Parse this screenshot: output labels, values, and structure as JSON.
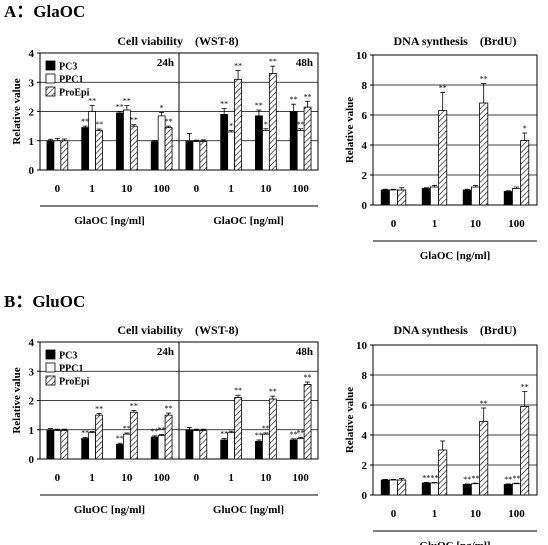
{
  "colors": {
    "PC3": "#000000",
    "PPC1": "#ffffff",
    "ProEpi": "hatch",
    "axis": "#000000",
    "grid": "#000000"
  },
  "panels": [
    {
      "label": "A：GlaOC",
      "viability_title": "Cell viability　(WST-8)",
      "synthesis_title": "DNA synthesis　(BrdU)",
      "ylabel": "Relative value",
      "xlabel": "GlaOC [ng/ml]",
      "legend": [
        "PC3",
        "PPC1",
        "ProEpi"
      ]
    },
    {
      "label": "B：GluOC",
      "viability_title": "Cell viability　(WST-8)",
      "synthesis_title": "DNA synthesis　(BrdU)",
      "ylabel": "Relative value",
      "xlabel": "GluOC [ng/ml]",
      "legend": [
        "PC3",
        "PPC1",
        "ProEpi"
      ]
    }
  ],
  "chart_data": [
    {
      "type": "bar",
      "panel": "A",
      "title": "Cell viability (WST-8)",
      "subtitle": "24h",
      "ylabel": "Relative value",
      "xlabel": "GlaOC [ng/ml]",
      "categories": [
        "0",
        "1",
        "10",
        "100"
      ],
      "ylim": [
        0,
        4
      ],
      "yticks": [
        0,
        1,
        2,
        3,
        4
      ],
      "legend_position": "top-left",
      "series": [
        {
          "name": "PC3",
          "values": [
            1.0,
            1.45,
            1.95,
            0.97
          ],
          "errors": [
            0.05,
            0.05,
            0.05,
            0.04
          ],
          "marks": [
            "",
            "**",
            "**",
            ""
          ]
        },
        {
          "name": "PPC1",
          "values": [
            1.0,
            2.0,
            2.05,
            1.85
          ],
          "errors": [
            0.08,
            0.2,
            0.15,
            0.12
          ],
          "marks": [
            "",
            "**",
            "**",
            "*"
          ]
        },
        {
          "name": "ProEpi",
          "values": [
            1.0,
            1.35,
            1.5,
            1.45
          ],
          "errors": [
            0.06,
            0.05,
            0.05,
            0.05
          ],
          "marks": [
            "",
            "**",
            "**",
            "**"
          ]
        }
      ]
    },
    {
      "type": "bar",
      "panel": "A",
      "title": "Cell viability (WST-8)",
      "subtitle": "48h",
      "ylabel": "Relative value",
      "xlabel": "GlaOC [ng/ml]",
      "categories": [
        "0",
        "1",
        "10",
        "100"
      ],
      "ylim": [
        0,
        4
      ],
      "yticks": [
        0,
        1,
        2,
        3,
        4
      ],
      "series": [
        {
          "name": "PC3",
          "values": [
            1.0,
            1.9,
            1.85,
            2.0
          ],
          "errors": [
            0.25,
            0.2,
            0.2,
            0.25
          ],
          "marks": [
            "",
            "**",
            "**",
            "**"
          ]
        },
        {
          "name": "PPC1",
          "values": [
            0.97,
            1.3,
            1.35,
            1.35
          ],
          "errors": [
            0.05,
            0.05,
            0.06,
            0.06
          ],
          "marks": [
            "",
            "*",
            "*",
            "**"
          ]
        },
        {
          "name": "ProEpi",
          "values": [
            0.97,
            3.1,
            3.3,
            2.15
          ],
          "errors": [
            0.06,
            0.3,
            0.25,
            0.2
          ],
          "marks": [
            "",
            "**",
            "**",
            "**"
          ]
        }
      ]
    },
    {
      "type": "bar",
      "panel": "A",
      "title": "DNA synthesis (BrdU)",
      "ylabel": "Relative value",
      "xlabel": "GlaOC [ng/ml]",
      "categories": [
        "0",
        "1",
        "10",
        "100"
      ],
      "ylim": [
        0,
        10
      ],
      "yticks": [
        0,
        2,
        4,
        6,
        8,
        10
      ],
      "series": [
        {
          "name": "PC3",
          "values": [
            1.0,
            1.1,
            1.0,
            0.9
          ],
          "errors": [
            0.05,
            0.05,
            0.05,
            0.05
          ],
          "marks": [
            "",
            "",
            "",
            ""
          ]
        },
        {
          "name": "PPC1",
          "values": [
            1.0,
            1.2,
            1.2,
            1.1
          ],
          "errors": [
            0.05,
            0.1,
            0.1,
            0.1
          ],
          "marks": [
            "",
            "",
            "",
            ""
          ]
        },
        {
          "name": "ProEpi",
          "values": [
            1.0,
            6.3,
            6.8,
            4.3
          ],
          "errors": [
            0.15,
            1.2,
            1.3,
            0.5
          ],
          "marks": [
            "",
            "**",
            "**",
            "*"
          ]
        }
      ]
    },
    {
      "type": "bar",
      "panel": "B",
      "title": "Cell viability (WST-8)",
      "subtitle": "24h",
      "ylabel": "Relative value",
      "xlabel": "GluOC [ng/ml]",
      "categories": [
        "0",
        "1",
        "10",
        "100"
      ],
      "ylim": [
        0,
        4
      ],
      "yticks": [
        0,
        1,
        2,
        3,
        4
      ],
      "legend_position": "top-left",
      "series": [
        {
          "name": "PC3",
          "values": [
            1.0,
            0.7,
            0.5,
            0.75
          ],
          "errors": [
            0.04,
            0.04,
            0.04,
            0.04
          ],
          "marks": [
            "",
            "**",
            "**",
            "**"
          ]
        },
        {
          "name": "PPC1",
          "values": [
            0.97,
            0.9,
            0.85,
            0.8
          ],
          "errors": [
            0.05,
            0.04,
            0.04,
            0.04
          ],
          "marks": [
            "",
            "",
            "**",
            "**"
          ]
        },
        {
          "name": "ProEpi",
          "values": [
            0.97,
            1.5,
            1.6,
            1.5
          ],
          "errors": [
            0.05,
            0.06,
            0.06,
            0.07
          ],
          "marks": [
            "",
            "**",
            "**",
            "**"
          ]
        }
      ]
    },
    {
      "type": "bar",
      "panel": "B",
      "title": "Cell viability (WST-8)",
      "subtitle": "48h",
      "ylabel": "Relative value",
      "xlabel": "GluOC [ng/ml]",
      "categories": [
        "0",
        "1",
        "10",
        "100"
      ],
      "ylim": [
        0,
        4
      ],
      "yticks": [
        0,
        1,
        2,
        3,
        4
      ],
      "series": [
        {
          "name": "PC3",
          "values": [
            1.0,
            0.65,
            0.6,
            0.65
          ],
          "errors": [
            0.08,
            0.05,
            0.05,
            0.04
          ],
          "marks": [
            "",
            "**",
            "**",
            "**"
          ]
        },
        {
          "name": "PPC1",
          "values": [
            0.97,
            0.9,
            0.85,
            0.7
          ],
          "errors": [
            0.05,
            0.05,
            0.04,
            0.04
          ],
          "marks": [
            "",
            "",
            "**",
            "**"
          ]
        },
        {
          "name": "ProEpi",
          "values": [
            0.97,
            2.1,
            2.05,
            2.55
          ],
          "errors": [
            0.05,
            0.08,
            0.1,
            0.08
          ],
          "marks": [
            "",
            "**",
            "**",
            "**"
          ]
        }
      ]
    },
    {
      "type": "bar",
      "panel": "B",
      "title": "DNA synthesis (BrdU)",
      "ylabel": "Relative value",
      "xlabel": "GluOC [ng/ml]",
      "categories": [
        "0",
        "1",
        "10",
        "100"
      ],
      "ylim": [
        0,
        10
      ],
      "yticks": [
        0,
        2,
        4,
        6,
        8,
        10
      ],
      "series": [
        {
          "name": "PC3",
          "values": [
            1.0,
            0.8,
            0.7,
            0.7
          ],
          "errors": [
            0.04,
            0.04,
            0.04,
            0.04
          ],
          "marks": [
            "",
            "**",
            "**",
            "**"
          ]
        },
        {
          "name": "PPC1",
          "values": [
            1.0,
            0.8,
            0.75,
            0.75
          ],
          "errors": [
            0.04,
            0.04,
            0.04,
            0.04
          ],
          "marks": [
            "",
            "**",
            "**",
            "**"
          ]
        },
        {
          "name": "ProEpi",
          "values": [
            1.0,
            3.0,
            4.9,
            5.9
          ],
          "errors": [
            0.1,
            0.6,
            0.9,
            1.0
          ],
          "marks": [
            "",
            "",
            "**",
            "**"
          ]
        }
      ]
    }
  ]
}
